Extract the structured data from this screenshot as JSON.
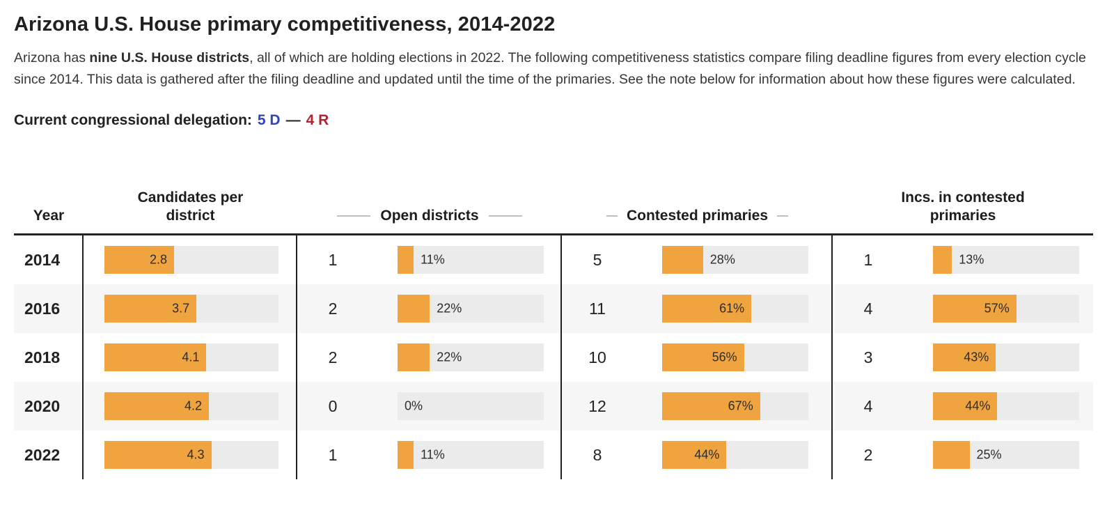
{
  "header": {
    "title": "Arizona U.S. House primary competitiveness, 2014-2022",
    "intro_prefix": "Arizona has ",
    "intro_bold": "nine U.S. House districts",
    "intro_rest": ", all of which are holding elections in 2022. The following competitiveness statistics compare filing deadline figures from every election cycle since 2014. This data is gathered after the filing deadline and updated until the time of the primaries. See the note below for information about how these figures were calculated.",
    "delegation_label": "Current congressional delegation:",
    "delegation_dem": "5 D",
    "delegation_dash": "—",
    "delegation_rep": "4 R"
  },
  "colors": {
    "bar_orange": "#F0A43F",
    "bar_track": "#EBEBEB",
    "row_alt": "#F6F6F6",
    "dem_blue": "#3344BB",
    "rep_red": "#B22230"
  },
  "chart_data": {
    "type": "table",
    "title": "Arizona U.S. House primary competitiveness, 2014-2022",
    "columns": [
      {
        "label": "Year"
      },
      {
        "label": "Candidates per district"
      },
      {
        "label": "Open districts"
      },
      {
        "label": "Contested primaries"
      },
      {
        "label": "Incs. in contested primaries"
      }
    ],
    "bar_style": "horizontal bars, orange fill on gray track, value label at bar end",
    "candidates_axis_max": 7,
    "rows": [
      {
        "year": "2014",
        "candidates_per_district": 2.8,
        "open_districts": {
          "count": 1,
          "pct": 11
        },
        "contested_primaries": {
          "count": 5,
          "pct": 28
        },
        "incumbents_in_contested": {
          "count": 1,
          "pct": 13
        }
      },
      {
        "year": "2016",
        "candidates_per_district": 3.7,
        "open_districts": {
          "count": 2,
          "pct": 22
        },
        "contested_primaries": {
          "count": 11,
          "pct": 61
        },
        "incumbents_in_contested": {
          "count": 4,
          "pct": 57
        }
      },
      {
        "year": "2018",
        "candidates_per_district": 4.1,
        "open_districts": {
          "count": 2,
          "pct": 22
        },
        "contested_primaries": {
          "count": 10,
          "pct": 56
        },
        "incumbents_in_contested": {
          "count": 3,
          "pct": 43
        }
      },
      {
        "year": "2020",
        "candidates_per_district": 4.2,
        "open_districts": {
          "count": 0,
          "pct": 0
        },
        "contested_primaries": {
          "count": 12,
          "pct": 67
        },
        "incumbents_in_contested": {
          "count": 4,
          "pct": 44
        }
      },
      {
        "year": "2022",
        "candidates_per_district": 4.3,
        "open_districts": {
          "count": 1,
          "pct": 11
        },
        "contested_primaries": {
          "count": 8,
          "pct": 44
        },
        "incumbents_in_contested": {
          "count": 2,
          "pct": 25
        }
      }
    ]
  }
}
